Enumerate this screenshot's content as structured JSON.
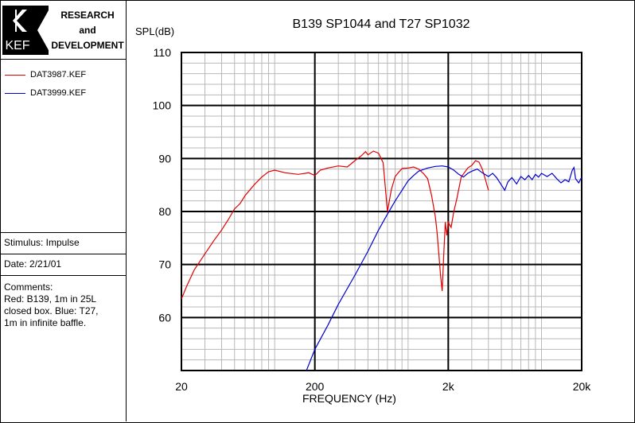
{
  "logo": {
    "brand": "KEF",
    "line1": "RESEARCH",
    "line2": "and",
    "line3": "DEVELOPMENT"
  },
  "legend": [
    {
      "label": "DAT3987.KEF",
      "color": "#e00000"
    },
    {
      "label": "DAT3999.KEF",
      "color": "#0000d0"
    }
  ],
  "stimulus": "Stimulus: Impulse",
  "date": "Date: 2/21/01",
  "comments": [
    "Comments:",
    "Red: B139, 1m in 25L",
    "closed box. Blue: T27,",
    "1m  in infinite baffle."
  ],
  "chart_data": {
    "type": "line",
    "title": "B139 SP1044 and T27 SP1032",
    "xlabel": "FREQUENCY (Hz)",
    "ylabel": "SPL(dB)",
    "xscale": "log",
    "xlim": [
      20,
      20000
    ],
    "ylim": [
      50,
      110
    ],
    "xticks": [
      {
        "v": 20,
        "label": "20"
      },
      {
        "v": 200,
        "label": "200"
      },
      {
        "v": 2000,
        "label": "2k"
      },
      {
        "v": 20000,
        "label": "20k"
      }
    ],
    "yticks": [
      60,
      70,
      80,
      90,
      100,
      110
    ],
    "grid": true,
    "series": [
      {
        "name": "DAT3987.KEF",
        "color": "#e00000",
        "points": [
          [
            20,
            63.5
          ],
          [
            22,
            66
          ],
          [
            25,
            69
          ],
          [
            30,
            72
          ],
          [
            35,
            74.5
          ],
          [
            40,
            76.5
          ],
          [
            45,
            78.5
          ],
          [
            50,
            80.5
          ],
          [
            55,
            81.5
          ],
          [
            60,
            83
          ],
          [
            70,
            85
          ],
          [
            80,
            86.5
          ],
          [
            90,
            87.5
          ],
          [
            100,
            87.8
          ],
          [
            120,
            87.3
          ],
          [
            150,
            87.0
          ],
          [
            180,
            87.3
          ],
          [
            200,
            86.8
          ],
          [
            220,
            87.8
          ],
          [
            250,
            88.2
          ],
          [
            300,
            88.6
          ],
          [
            350,
            88.4
          ],
          [
            400,
            89.6
          ],
          [
            450,
            90.6
          ],
          [
            480,
            91.3
          ],
          [
            500,
            90.7
          ],
          [
            550,
            91.4
          ],
          [
            600,
            91.0
          ],
          [
            650,
            89.2
          ],
          [
            700,
            80.0
          ],
          [
            750,
            84.2
          ],
          [
            800,
            86.6
          ],
          [
            850,
            87.4
          ],
          [
            900,
            88.1
          ],
          [
            1000,
            88.2
          ],
          [
            1100,
            88.4
          ],
          [
            1200,
            88.0
          ],
          [
            1300,
            87.2
          ],
          [
            1400,
            86.2
          ],
          [
            1500,
            83.0
          ],
          [
            1600,
            79.0
          ],
          [
            1650,
            76.0
          ],
          [
            1700,
            72.0
          ],
          [
            1750,
            68.0
          ],
          [
            1800,
            65.0
          ],
          [
            1850,
            72.0
          ],
          [
            1900,
            78.0
          ],
          [
            1950,
            75.5
          ],
          [
            2000,
            78.0
          ],
          [
            2100,
            77.0
          ],
          [
            2200,
            80.0
          ],
          [
            2300,
            82.0
          ],
          [
            2500,
            86.5
          ],
          [
            2800,
            88.2
          ],
          [
            3000,
            88.7
          ],
          [
            3200,
            89.6
          ],
          [
            3400,
            89.3
          ],
          [
            3600,
            88.0
          ],
          [
            3800,
            86.0
          ],
          [
            4000,
            84.0
          ]
        ]
      },
      {
        "name": "DAT3999.KEF",
        "color": "#0000d0",
        "points": [
          [
            170,
            49.5
          ],
          [
            200,
            54
          ],
          [
            250,
            58.5
          ],
          [
            300,
            62.5
          ],
          [
            400,
            68
          ],
          [
            500,
            72.5
          ],
          [
            600,
            76.5
          ],
          [
            700,
            79.5
          ],
          [
            800,
            82
          ],
          [
            900,
            84
          ],
          [
            1000,
            85.8
          ],
          [
            1100,
            86.8
          ],
          [
            1200,
            87.6
          ],
          [
            1400,
            88.2
          ],
          [
            1600,
            88.5
          ],
          [
            1800,
            88.6
          ],
          [
            2000,
            88.4
          ],
          [
            2200,
            87.8
          ],
          [
            2400,
            87.0
          ],
          [
            2600,
            86.5
          ],
          [
            2800,
            87.2
          ],
          [
            3000,
            87.6
          ],
          [
            3300,
            88.0
          ],
          [
            3600,
            87.3
          ],
          [
            4000,
            86.6
          ],
          [
            4300,
            87.2
          ],
          [
            4600,
            86.4
          ],
          [
            5000,
            85.0
          ],
          [
            5300,
            84.0
          ],
          [
            5600,
            85.6
          ],
          [
            6000,
            86.4
          ],
          [
            6500,
            85.2
          ],
          [
            7000,
            86.6
          ],
          [
            7500,
            86.0
          ],
          [
            8000,
            86.8
          ],
          [
            8500,
            86.0
          ],
          [
            9000,
            87.0
          ],
          [
            9500,
            86.5
          ],
          [
            10000,
            87.2
          ],
          [
            11000,
            86.6
          ],
          [
            12000,
            87.2
          ],
          [
            13000,
            86.2
          ],
          [
            14000,
            85.4
          ],
          [
            15000,
            86.0
          ],
          [
            16000,
            85.6
          ],
          [
            17000,
            87.8
          ],
          [
            17500,
            88.3
          ],
          [
            18000,
            86.2
          ],
          [
            19000,
            85.4
          ],
          [
            20000,
            86.5
          ]
        ]
      }
    ]
  }
}
